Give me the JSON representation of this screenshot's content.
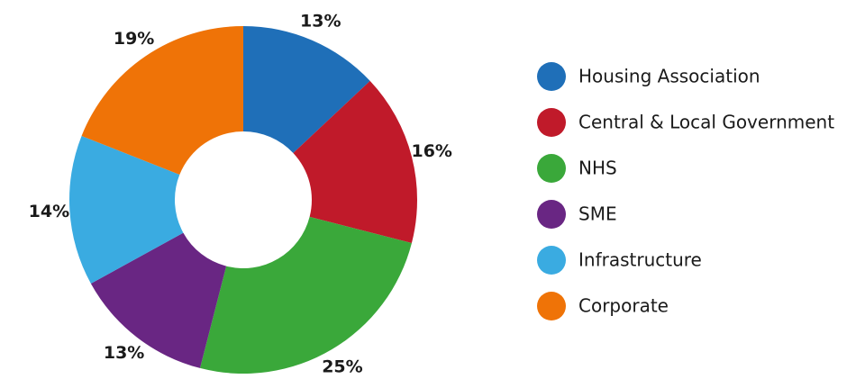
{
  "chart_data": {
    "type": "donut",
    "categories": [
      "Housing Association",
      "Central & Local Government",
      "NHS",
      "SME",
      "Infrastructure",
      "Corporate"
    ],
    "values": [
      13,
      16,
      25,
      13,
      14,
      19
    ],
    "value_labels": [
      "13%",
      "16%",
      "25%",
      "13%",
      "14%",
      "19%"
    ],
    "colors": [
      "#1f6fb8",
      "#c01a2a",
      "#3aa83a",
      "#692683",
      "#3aabe1",
      "#ef7307"
    ]
  }
}
